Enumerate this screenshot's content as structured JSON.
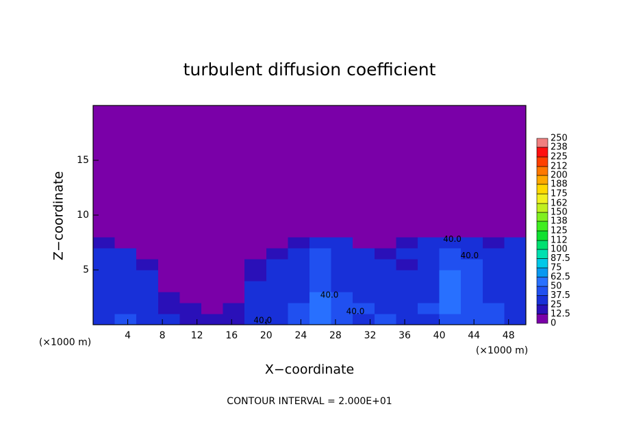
{
  "chart_data": {
    "type": "heatmap",
    "title": "turbulent diffusion coefficient",
    "xlabel": "X−coordinate",
    "ylabel": "Z−coordinate",
    "x_unit": "(×1000 m)",
    "y_unit": "(×1000 m)",
    "footer": "CONTOUR INTERVAL = 2.000E+01",
    "xlim": [
      0,
      50
    ],
    "ylim": [
      0,
      20
    ],
    "xticks": [
      4,
      8,
      12,
      16,
      20,
      24,
      28,
      32,
      36,
      40,
      44,
      48
    ],
    "yticks": [
      5,
      10,
      15
    ],
    "x_edges": [
      0,
      2.5,
      5,
      7.5,
      10,
      12.5,
      15,
      17.5,
      20,
      22.5,
      25,
      27.5,
      30,
      32.5,
      35,
      37.5,
      40,
      42.5,
      45,
      47.5,
      50
    ],
    "z_edges": [
      0,
      1,
      2,
      3,
      4,
      5,
      6,
      7,
      8,
      20
    ],
    "values": [
      [
        35,
        38,
        30,
        25,
        20,
        15,
        20,
        30,
        35,
        40,
        60,
        40,
        35,
        40,
        30,
        35,
        45,
        45,
        40,
        35
      ],
      [
        33,
        35,
        30,
        20,
        15,
        12,
        15,
        30,
        35,
        38,
        55,
        40,
        38,
        35,
        30,
        38,
        50,
        40,
        38,
        35
      ],
      [
        32,
        33,
        30,
        15,
        12,
        10,
        10,
        28,
        35,
        35,
        50,
        38,
        35,
        32,
        30,
        35,
        55,
        45,
        35,
        33
      ],
      [
        32,
        33,
        30,
        10,
        5,
        5,
        8,
        25,
        33,
        35,
        45,
        35,
        33,
        30,
        28,
        35,
        55,
        45,
        35,
        33
      ],
      [
        32,
        33,
        28,
        8,
        3,
        3,
        5,
        22,
        33,
        35,
        40,
        35,
        33,
        30,
        25,
        35,
        50,
        45,
        35,
        33
      ],
      [
        32,
        32,
        20,
        5,
        2,
        2,
        3,
        15,
        30,
        35,
        40,
        35,
        32,
        25,
        20,
        35,
        45,
        40,
        35,
        33
      ],
      [
        30,
        30,
        10,
        3,
        1,
        1,
        2,
        8,
        20,
        33,
        40,
        35,
        30,
        15,
        25,
        35,
        40,
        35,
        33,
        32
      ],
      [
        15,
        10,
        3,
        1,
        0,
        0,
        0,
        2,
        5,
        20,
        30,
        25,
        10,
        3,
        20,
        30,
        30,
        25,
        20,
        25
      ],
      [
        0,
        0,
        0,
        0,
        0,
        0,
        0,
        0,
        0,
        0,
        0,
        0,
        0,
        0,
        0,
        0,
        0,
        0,
        0,
        0
      ]
    ],
    "levels": [
      0,
      12.5,
      25,
      37.5,
      50,
      62.5,
      75,
      87.5,
      100,
      112,
      125,
      138,
      150,
      162,
      175,
      188,
      200,
      212,
      225,
      238,
      250
    ],
    "colors": [
      "#7a00a8",
      "#2a10b8",
      "#1830d8",
      "#2050f0",
      "#2870ff",
      "#0898f0",
      "#00c8e8",
      "#00e0b0",
      "#00e070",
      "#10e030",
      "#40ee20",
      "#80f020",
      "#c0f020",
      "#f0f020",
      "#ffd800",
      "#ffa800",
      "#ff7800",
      "#ff4000",
      "#ff1010",
      "#f08080"
    ],
    "annotations": [
      {
        "text": "40.0",
        "x": 41.5,
        "z": 7.4
      },
      {
        "text": "40.0",
        "x": 43.5,
        "z": 5.9
      },
      {
        "text": "40.0",
        "x": 27.3,
        "z": 2.3
      },
      {
        "text": "40.0",
        "x": 30.3,
        "z": 0.8
      },
      {
        "text": "40.0",
        "x": 19.6,
        "z": 0.0
      }
    ]
  }
}
